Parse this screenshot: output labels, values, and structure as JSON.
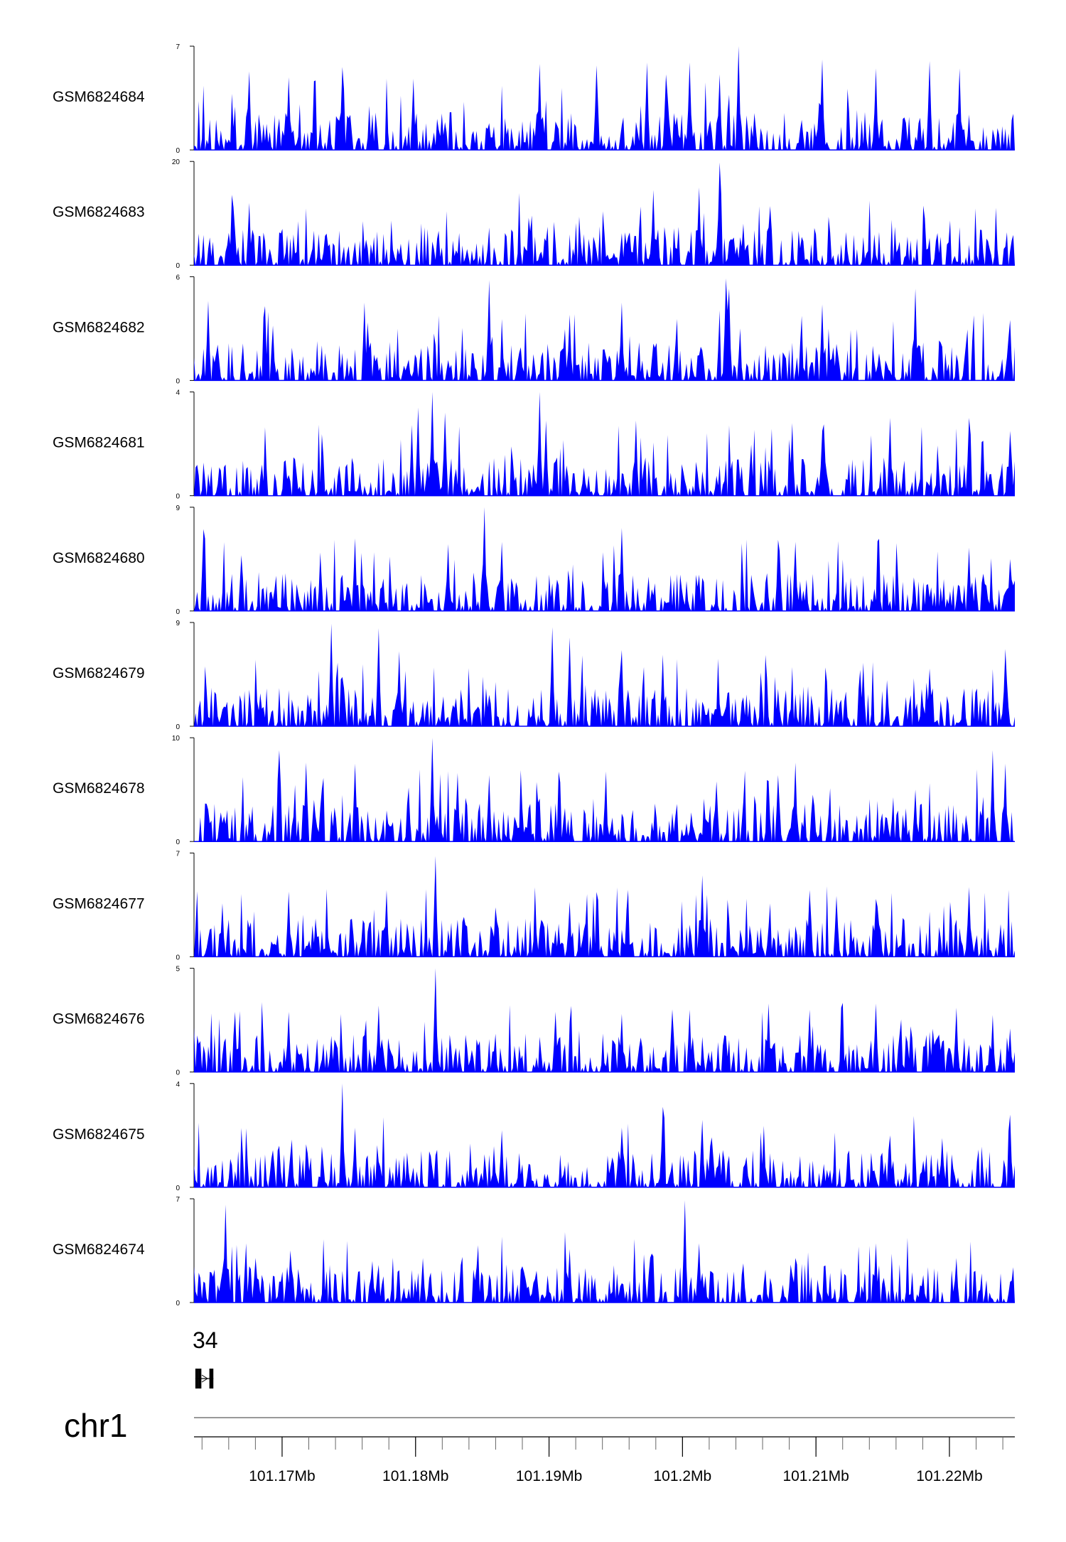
{
  "chart_data": {
    "type": "area",
    "chromosome": "chr1",
    "x_range_mb": [
      101.1634,
      101.2249
    ],
    "x_ticks": [
      {
        "value": 101.17,
        "label": "101.17Mb"
      },
      {
        "value": 101.18,
        "label": "101.18Mb"
      },
      {
        "value": 101.19,
        "label": "101.19Mb"
      },
      {
        "value": 101.2,
        "label": "101.2Mb"
      },
      {
        "value": 101.21,
        "label": "101.21Mb"
      },
      {
        "value": 101.22,
        "label": "101.22Mb"
      }
    ],
    "fill_color": "#0000ff",
    "gene_label": "34",
    "gene_model": {
      "exons_mb": [
        [
          101.1635,
          101.16356
        ],
        [
          101.16362,
          101.16368
        ],
        [
          101.16375,
          101.16395
        ],
        [
          101.16455,
          101.16485
        ]
      ],
      "strand": "+"
    },
    "tracks": [
      {
        "name": "GSM6824684",
        "ymax": 7,
        "ymin": 0,
        "peaks": [
          [
            101.1675,
            5.3
          ],
          [
            101.1705,
            4.9
          ],
          [
            101.1745,
            5.6
          ],
          [
            101.1798,
            4.8
          ],
          [
            101.1893,
            5.8
          ],
          [
            101.1935,
            5.7
          ],
          [
            101.1973,
            5.9
          ],
          [
            101.1988,
            5.1
          ],
          [
            101.2005,
            5.9
          ],
          [
            101.2028,
            5.1
          ],
          [
            101.2042,
            7.0
          ],
          [
            101.2105,
            6.1
          ],
          [
            101.2145,
            5.5
          ],
          [
            101.2185,
            6.0
          ],
          [
            101.2208,
            5.5
          ]
        ]
      },
      {
        "name": "GSM6824683",
        "ymax": 20,
        "ymin": 0,
        "peaks": [
          [
            101.1675,
            12.0
          ],
          [
            101.1978,
            14.5
          ],
          [
            101.2012,
            15.0
          ],
          [
            101.2028,
            19.8
          ],
          [
            101.2045,
            8.0
          ]
        ]
      },
      {
        "name": "GSM6824682",
        "ymax": 6,
        "ymin": 0,
        "peaks": [
          [
            101.1645,
            4.6
          ],
          [
            101.1687,
            4.3
          ],
          [
            101.1762,
            4.5
          ],
          [
            101.1855,
            5.8
          ],
          [
            101.1915,
            3.8
          ],
          [
            101.1955,
            4.5
          ],
          [
            101.2032,
            5.9
          ],
          [
            101.2035,
            5.3
          ],
          [
            101.2105,
            4.4
          ],
          [
            101.2175,
            5.3
          ],
          [
            101.2175,
            3.5
          ],
          [
            101.2245,
            3.5
          ]
        ]
      },
      {
        "name": "GSM6824681",
        "ymax": 4,
        "ymin": 0,
        "peaks": [
          [
            101.1802,
            3.4
          ],
          [
            101.1812,
            4.0
          ],
          [
            101.1822,
            3.2
          ],
          [
            101.1893,
            4.0
          ],
          [
            101.1898,
            2.9
          ],
          [
            101.1965,
            2.9
          ],
          [
            101.2082,
            2.8
          ],
          [
            101.2105,
            2.5
          ],
          [
            101.2155,
            3.0
          ],
          [
            101.2215,
            3.0
          ],
          [
            101.2245,
            2.5
          ]
        ]
      },
      {
        "name": "GSM6824680",
        "ymax": 9,
        "ymin": 0,
        "peaks": [
          [
            101.1641,
            7.1
          ],
          [
            101.1755,
            6.3
          ],
          [
            101.1825,
            5.8
          ],
          [
            101.1852,
            9.0
          ],
          [
            101.1865,
            6.0
          ],
          [
            101.1955,
            7.2
          ],
          [
            101.2085,
            6.0
          ],
          [
            101.2215,
            5.5
          ],
          [
            101.2245,
            4.5
          ]
        ]
      },
      {
        "name": "GSM6824679",
        "ymax": 9,
        "ymin": 0,
        "peaks": [
          [
            101.1737,
            8.9
          ],
          [
            101.1772,
            8.5
          ],
          [
            101.1788,
            6.5
          ],
          [
            101.1902,
            8.6
          ],
          [
            101.1915,
            7.7
          ],
          [
            101.1955,
            6.6
          ],
          [
            101.1985,
            6.2
          ],
          [
            101.2135,
            5.5
          ],
          [
            101.2185,
            5.0
          ],
          [
            101.2242,
            6.7
          ]
        ]
      },
      {
        "name": "GSM6824678",
        "ymax": 10,
        "ymin": 0,
        "peaks": [
          [
            101.1698,
            8.8
          ],
          [
            101.1718,
            7.6
          ],
          [
            101.1755,
            7.5
          ],
          [
            101.1795,
            5.2
          ],
          [
            101.1812,
            10.0
          ],
          [
            101.1832,
            6.6
          ],
          [
            101.1855,
            6.4
          ],
          [
            101.2072,
            6.4
          ],
          [
            101.2085,
            7.6
          ],
          [
            101.2175,
            5.0
          ],
          [
            101.2232,
            8.8
          ],
          [
            101.2242,
            7.5
          ]
        ]
      },
      {
        "name": "GSM6824677",
        "ymax": 7,
        "ymin": 0,
        "peaks": [
          [
            101.1655,
            3.6
          ],
          [
            101.1705,
            4.4
          ],
          [
            101.1778,
            4.5
          ],
          [
            101.1815,
            6.8
          ],
          [
            101.1915,
            3.7
          ],
          [
            101.2015,
            5.5
          ],
          [
            101.2095,
            4.5
          ],
          [
            101.2115,
            4.1
          ],
          [
            101.2145,
            3.9
          ],
          [
            101.2215,
            4.7
          ],
          [
            101.2238,
            2.2
          ]
        ]
      },
      {
        "name": "GSM6824676",
        "ymax": 5,
        "ymin": 0,
        "peaks": [
          [
            101.1665,
            2.9
          ],
          [
            101.1705,
            2.9
          ],
          [
            101.1772,
            3.2
          ],
          [
            101.1815,
            5.0
          ],
          [
            101.1905,
            2.9
          ],
          [
            101.1955,
            2.8
          ],
          [
            101.2005,
            3.0
          ],
          [
            101.2065,
            3.3
          ],
          [
            101.2095,
            3.0
          ],
          [
            101.2145,
            3.3
          ],
          [
            101.2205,
            3.1
          ],
          [
            101.2245,
            2.1
          ]
        ]
      },
      {
        "name": "GSM6824675",
        "ymax": 4,
        "ymin": 0,
        "peaks": [
          [
            101.1698,
            1.6
          ],
          [
            101.1745,
            4.0
          ],
          [
            101.1755,
            2.3
          ],
          [
            101.1865,
            2.2
          ],
          [
            101.1955,
            2.3
          ],
          [
            101.1985,
            3.1
          ],
          [
            101.2015,
            2.6
          ],
          [
            101.2155,
            2.0
          ],
          [
            101.2195,
            1.9
          ],
          [
            101.2245,
            2.8
          ]
        ]
      },
      {
        "name": "GSM6824674",
        "ymax": 7,
        "ymin": 0,
        "peaks": [
          [
            101.1658,
            6.6
          ],
          [
            101.1768,
            2.8
          ],
          [
            101.1805,
            3.0
          ],
          [
            101.1915,
            3.6
          ],
          [
            101.2002,
            6.9
          ],
          [
            101.2012,
            4.0
          ],
          [
            101.2085,
            3.0
          ],
          [
            101.2145,
            4.0
          ],
          [
            101.2205,
            3.0
          ],
          [
            101.2245,
            1.4
          ]
        ]
      }
    ]
  }
}
